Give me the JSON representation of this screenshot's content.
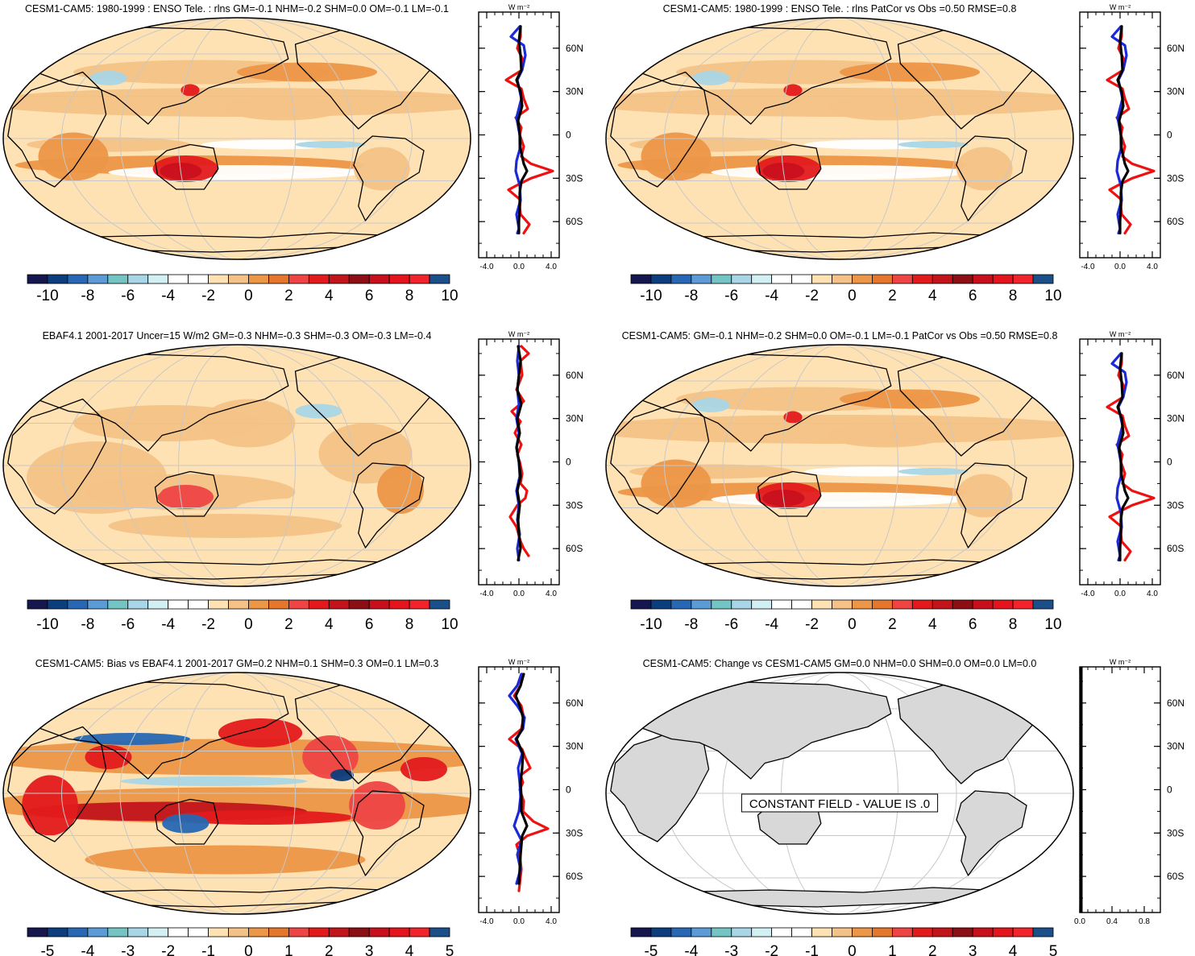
{
  "colors": {
    "scale": [
      "#17174f",
      "#0c3e7d",
      "#2767b3",
      "#5b9bd6",
      "#75c4c4",
      "#a9d6e6",
      "#d2f0f4",
      "#ffffff",
      "#ffffff",
      "#ffe2b4",
      "#f4c287",
      "#ec9648",
      "#e5772d",
      "#ee4444",
      "#e31a1c",
      "#c2151b",
      "#8b0f14",
      "#c8101c",
      "#e4141c",
      "#f0242a",
      "#1b4f8a"
    ],
    "land": "#000000",
    "series_red": "#ee1111",
    "series_blue": "#1b2ad6",
    "series_black": "#000000",
    "constant_land": "#d8d8d8"
  },
  "panels": [
    {
      "title": "CESM1-CAM5: 1980-1999 : ENSO Tele. : rlns GM=-0.1 NHM=-0.2 SHM=0.0 OM=-0.1 LM=-0.1",
      "field": "model",
      "colorbar_labels": [
        "-10",
        "-8",
        "-6",
        "-4",
        "-2",
        "0",
        "2",
        "4",
        "6",
        "8",
        "10"
      ],
      "zonal_unit": "W m⁻²",
      "zonal_y_labels": [
        "60N",
        "30N",
        "0",
        "30S",
        "60S"
      ],
      "zonal_x_labels": [
        "-4.0",
        "0.0",
        "4.0"
      ],
      "zonal_xlim": [
        -5,
        5
      ],
      "zonal_red": [
        [
          75,
          0.2
        ],
        [
          68,
          0.2
        ],
        [
          60,
          -0.2
        ],
        [
          52,
          0.5
        ],
        [
          45,
          0.4
        ],
        [
          38,
          -1.6
        ],
        [
          32,
          0.3
        ],
        [
          25,
          0.6
        ],
        [
          18,
          1.1
        ],
        [
          12,
          -0.4
        ],
        [
          5,
          0.3
        ],
        [
          0,
          0.1
        ],
        [
          -8,
          0.6
        ],
        [
          -15,
          0.3
        ],
        [
          -20,
          1.5
        ],
        [
          -25,
          4.2
        ],
        [
          -30,
          1.5
        ],
        [
          -35,
          -0.3
        ],
        [
          -38,
          -1.3
        ],
        [
          -45,
          0.2
        ],
        [
          -50,
          0.1
        ],
        [
          -55,
          0.2
        ],
        [
          -62,
          1.3
        ],
        [
          -68,
          0.6
        ]
      ],
      "zonal_blue": [
        [
          75,
          0.1
        ],
        [
          68,
          -1.0
        ],
        [
          62,
          0.6
        ],
        [
          55,
          0.8
        ],
        [
          45,
          0.4
        ],
        [
          38,
          -0.2
        ],
        [
          25,
          0.3
        ],
        [
          12,
          -0.3
        ],
        [
          0,
          0.1
        ],
        [
          -10,
          0.1
        ],
        [
          -18,
          -0.3
        ],
        [
          -25,
          -0.4
        ],
        [
          -35,
          0.1
        ],
        [
          -45,
          0.2
        ],
        [
          -55,
          -0.3
        ],
        [
          -65,
          0.0
        ],
        [
          -68,
          -0.2
        ]
      ],
      "zonal_black": [
        [
          75,
          0.2
        ],
        [
          65,
          0.0
        ],
        [
          55,
          0.2
        ],
        [
          45,
          0.3
        ],
        [
          38,
          -0.3
        ],
        [
          30,
          0.2
        ],
        [
          20,
          0.4
        ],
        [
          10,
          -0.1
        ],
        [
          0,
          0.1
        ],
        [
          -10,
          0.2
        ],
        [
          -20,
          0.6
        ],
        [
          -25,
          1.0
        ],
        [
          -32,
          0.3
        ],
        [
          -40,
          0.1
        ],
        [
          -50,
          0.1
        ],
        [
          -60,
          0.0
        ],
        [
          -68,
          0.0
        ]
      ]
    },
    {
      "title": "CESM1-CAM5: 1980-1999 : ENSO Tele. : rlns PatCor vs Obs =0.50 RMSE=0.8",
      "field": "model",
      "colorbar_labels": [
        "-10",
        "-8",
        "-6",
        "-4",
        "-2",
        "0",
        "2",
        "4",
        "6",
        "8",
        "10"
      ],
      "zonal_unit": "W m⁻²",
      "zonal_y_labels": [
        "60N",
        "30N",
        "0",
        "30S",
        "60S"
      ],
      "zonal_x_labels": [
        "-4.0",
        "0.0",
        "4.0"
      ],
      "zonal_xlim": [
        -5,
        5
      ],
      "zonal_red": [
        [
          75,
          0.2
        ],
        [
          68,
          0.2
        ],
        [
          60,
          -0.2
        ],
        [
          52,
          0.5
        ],
        [
          45,
          0.4
        ],
        [
          38,
          -1.6
        ],
        [
          32,
          0.3
        ],
        [
          25,
          0.6
        ],
        [
          18,
          1.1
        ],
        [
          12,
          -0.4
        ],
        [
          5,
          0.3
        ],
        [
          0,
          0.1
        ],
        [
          -8,
          0.6
        ],
        [
          -15,
          0.3
        ],
        [
          -20,
          1.5
        ],
        [
          -25,
          4.2
        ],
        [
          -30,
          1.5
        ],
        [
          -35,
          -0.3
        ],
        [
          -38,
          -1.3
        ],
        [
          -45,
          0.2
        ],
        [
          -50,
          0.1
        ],
        [
          -55,
          0.2
        ],
        [
          -62,
          1.3
        ],
        [
          -68,
          0.6
        ]
      ],
      "zonal_blue": [
        [
          75,
          0.1
        ],
        [
          68,
          -1.0
        ],
        [
          62,
          0.6
        ],
        [
          55,
          0.8
        ],
        [
          45,
          0.4
        ],
        [
          38,
          -0.2
        ],
        [
          25,
          0.3
        ],
        [
          12,
          -0.3
        ],
        [
          0,
          0.1
        ],
        [
          -10,
          0.1
        ],
        [
          -18,
          -0.3
        ],
        [
          -25,
          -0.4
        ],
        [
          -35,
          0.1
        ],
        [
          -45,
          0.2
        ],
        [
          -55,
          -0.3
        ],
        [
          -65,
          0.0
        ],
        [
          -68,
          -0.2
        ]
      ],
      "zonal_black": [
        [
          75,
          0.2
        ],
        [
          65,
          0.0
        ],
        [
          55,
          0.2
        ],
        [
          45,
          0.3
        ],
        [
          38,
          -0.3
        ],
        [
          30,
          0.2
        ],
        [
          20,
          0.4
        ],
        [
          10,
          -0.1
        ],
        [
          0,
          0.1
        ],
        [
          -10,
          0.2
        ],
        [
          -20,
          0.6
        ],
        [
          -25,
          1.0
        ],
        [
          -32,
          0.3
        ],
        [
          -40,
          0.1
        ],
        [
          -50,
          0.1
        ],
        [
          -60,
          0.0
        ],
        [
          -68,
          0.0
        ]
      ]
    },
    {
      "title": "EBAF4.1 2001-2017 Uncer=15 W/m2 GM=-0.3 NHM=-0.3 SHM=-0.3 OM=-0.3 LM=-0.4",
      "field": "obs",
      "colorbar_labels": [
        "-10",
        "-8",
        "-6",
        "-4",
        "-2",
        "0",
        "2",
        "4",
        "6",
        "8",
        "10"
      ],
      "zonal_unit": "W m⁻²",
      "zonal_y_labels": [
        "60N",
        "30N",
        "0",
        "30S",
        "60S"
      ],
      "zonal_x_labels": [
        "-4.0",
        "0.0",
        "4.0"
      ],
      "zonal_xlim": [
        -5,
        5
      ],
      "zonal_red": [
        [
          80,
          0.3
        ],
        [
          75,
          1.2
        ],
        [
          70,
          0.2
        ],
        [
          60,
          0.4
        ],
        [
          50,
          -0.3
        ],
        [
          42,
          0.6
        ],
        [
          35,
          -0.9
        ],
        [
          28,
          0.2
        ],
        [
          20,
          -0.5
        ],
        [
          12,
          0.3
        ],
        [
          5,
          -0.2
        ],
        [
          0,
          0.1
        ],
        [
          -8,
          0.4
        ],
        [
          -15,
          0.2
        ],
        [
          -20,
          1.0
        ],
        [
          -25,
          0.8
        ],
        [
          -30,
          -0.2
        ],
        [
          -38,
          -1.1
        ],
        [
          -45,
          -0.3
        ],
        [
          -55,
          0.2
        ],
        [
          -60,
          0.6
        ],
        [
          -65,
          1.2
        ]
      ],
      "zonal_blue": [
        [
          80,
          0.0
        ],
        [
          70,
          -0.2
        ],
        [
          60,
          0.0
        ],
        [
          50,
          -0.2
        ],
        [
          40,
          0.0
        ],
        [
          30,
          -0.3
        ],
        [
          20,
          0.0
        ],
        [
          10,
          -0.3
        ],
        [
          0,
          0.0
        ],
        [
          -10,
          0.1
        ],
        [
          -20,
          -0.3
        ],
        [
          -30,
          0.0
        ],
        [
          -40,
          -0.2
        ],
        [
          -50,
          0.1
        ],
        [
          -60,
          -0.2
        ],
        [
          -68,
          0.0
        ]
      ],
      "zonal_black": [
        [
          80,
          -0.1
        ],
        [
          70,
          0.2
        ],
        [
          60,
          0.0
        ],
        [
          50,
          -0.2
        ],
        [
          40,
          0.3
        ],
        [
          30,
          -0.2
        ],
        [
          20,
          0.1
        ],
        [
          10,
          -0.3
        ],
        [
          0,
          0.0
        ],
        [
          -10,
          0.2
        ],
        [
          -20,
          -0.2
        ],
        [
          -30,
          0.1
        ],
        [
          -40,
          -0.1
        ],
        [
          -50,
          0.0
        ],
        [
          -60,
          0.2
        ],
        [
          -68,
          -0.1
        ]
      ]
    },
    {
      "title": "CESM1-CAM5: GM=-0.1 NHM=-0.2 SHM=0.0 OM=-0.1 LM=-0.1 PatCor vs Obs =0.50 RMSE=0.8",
      "field": "model",
      "colorbar_labels": [
        "-10",
        "-8",
        "-6",
        "-4",
        "-2",
        "0",
        "2",
        "4",
        "6",
        "8",
        "10"
      ],
      "zonal_unit": "W m⁻²",
      "zonal_y_labels": [
        "60N",
        "30N",
        "0",
        "30S",
        "60S"
      ],
      "zonal_x_labels": [
        "-4.0",
        "0.0",
        "4.0"
      ],
      "zonal_xlim": [
        -5,
        5
      ],
      "zonal_red": [
        [
          75,
          0.2
        ],
        [
          68,
          0.2
        ],
        [
          60,
          -0.2
        ],
        [
          52,
          0.5
        ],
        [
          45,
          0.4
        ],
        [
          38,
          -1.6
        ],
        [
          32,
          0.3
        ],
        [
          25,
          0.6
        ],
        [
          18,
          1.1
        ],
        [
          12,
          -0.4
        ],
        [
          5,
          0.3
        ],
        [
          0,
          0.1
        ],
        [
          -8,
          0.6
        ],
        [
          -15,
          0.3
        ],
        [
          -20,
          1.5
        ],
        [
          -25,
          4.2
        ],
        [
          -30,
          1.5
        ],
        [
          -35,
          -0.3
        ],
        [
          -38,
          -1.3
        ],
        [
          -45,
          0.2
        ],
        [
          -50,
          0.1
        ],
        [
          -55,
          0.2
        ],
        [
          -62,
          1.3
        ],
        [
          -68,
          0.6
        ]
      ],
      "zonal_blue": [
        [
          75,
          0.1
        ],
        [
          68,
          -1.0
        ],
        [
          62,
          0.6
        ],
        [
          55,
          0.8
        ],
        [
          45,
          0.4
        ],
        [
          38,
          -0.2
        ],
        [
          25,
          0.3
        ],
        [
          12,
          -0.3
        ],
        [
          0,
          0.1
        ],
        [
          -10,
          0.1
        ],
        [
          -18,
          -0.3
        ],
        [
          -25,
          -0.4
        ],
        [
          -35,
          0.1
        ],
        [
          -45,
          0.2
        ],
        [
          -55,
          -0.3
        ],
        [
          -65,
          0.0
        ],
        [
          -68,
          -0.2
        ]
      ],
      "zonal_black": [
        [
          75,
          0.2
        ],
        [
          65,
          0.0
        ],
        [
          55,
          0.2
        ],
        [
          45,
          0.3
        ],
        [
          38,
          -0.3
        ],
        [
          30,
          0.2
        ],
        [
          20,
          0.4
        ],
        [
          10,
          -0.1
        ],
        [
          0,
          0.1
        ],
        [
          -10,
          0.2
        ],
        [
          -20,
          0.6
        ],
        [
          -25,
          1.0
        ],
        [
          -32,
          0.3
        ],
        [
          -40,
          0.1
        ],
        [
          -50,
          0.1
        ],
        [
          -60,
          0.0
        ],
        [
          -68,
          0.0
        ]
      ]
    },
    {
      "title": "CESM1-CAM5: Bias vs EBAF4.1 2001-2017 GM=0.2 NHM=0.1 SHM=0.3 OM=0.1 LM=0.3",
      "field": "bias",
      "colorbar_labels": [
        "-5",
        "-4",
        "-3",
        "-2",
        "-1",
        "0",
        "1",
        "2",
        "3",
        "4",
        "5"
      ],
      "zonal_unit": "W m⁻²",
      "zonal_y_labels": [
        "60N",
        "30N",
        "0",
        "30S",
        "60S"
      ],
      "zonal_x_labels": [
        "-4.0",
        "0.0",
        "4.0"
      ],
      "zonal_xlim": [
        -5,
        5
      ],
      "zonal_red": [
        [
          80,
          0.4
        ],
        [
          72,
          0.2
        ],
        [
          65,
          -0.6
        ],
        [
          58,
          0.3
        ],
        [
          50,
          0.6
        ],
        [
          42,
          0.3
        ],
        [
          35,
          -1.2
        ],
        [
          28,
          0.4
        ],
        [
          22,
          0.8
        ],
        [
          15,
          1.4
        ],
        [
          10,
          0.2
        ],
        [
          5,
          0.5
        ],
        [
          0,
          0.1
        ],
        [
          -8,
          0.6
        ],
        [
          -15,
          0.5
        ],
        [
          -22,
          1.8
        ],
        [
          -27,
          3.6
        ],
        [
          -32,
          1.0
        ],
        [
          -38,
          -0.3
        ],
        [
          -45,
          0.1
        ],
        [
          -55,
          0.3
        ],
        [
          -65,
          0.1
        ],
        [
          -70,
          0.0
        ]
      ],
      "zonal_blue": [
        [
          80,
          0.3
        ],
        [
          72,
          -0.2
        ],
        [
          65,
          -1.2
        ],
        [
          58,
          -0.2
        ],
        [
          50,
          0.7
        ],
        [
          42,
          0.5
        ],
        [
          35,
          -0.4
        ],
        [
          25,
          0.4
        ],
        [
          15,
          -0.1
        ],
        [
          5,
          0.1
        ],
        [
          -5,
          0.2
        ],
        [
          -15,
          0.0
        ],
        [
          -25,
          -0.6
        ],
        [
          -35,
          0.3
        ],
        [
          -45,
          -0.2
        ],
        [
          -55,
          0.2
        ],
        [
          -65,
          -0.3
        ]
      ],
      "zonal_black": [
        [
          80,
          0.6
        ],
        [
          72,
          0.2
        ],
        [
          65,
          -0.4
        ],
        [
          58,
          0.1
        ],
        [
          50,
          0.5
        ],
        [
          42,
          0.4
        ],
        [
          35,
          -0.3
        ],
        [
          25,
          0.5
        ],
        [
          15,
          0.4
        ],
        [
          5,
          0.2
        ],
        [
          -5,
          0.3
        ],
        [
          -15,
          0.3
        ],
        [
          -25,
          1.0
        ],
        [
          -32,
          0.4
        ],
        [
          -45,
          0.2
        ],
        [
          -55,
          0.1
        ],
        [
          -65,
          0.0
        ]
      ]
    },
    {
      "title": "CESM1-CAM5: Change vs CESM1-CAM5 GM=0.0 NHM=0.0 SHM=0.0 OM=0.0 LM=0.0",
      "field": "constant",
      "colorbar_labels": [
        "-5",
        "-4",
        "-3",
        "-2",
        "-1",
        "0",
        "1",
        "2",
        "3",
        "4",
        "5"
      ],
      "zonal_unit": "W m⁻²",
      "zonal_y_labels": [
        "60N",
        "30N",
        "0",
        "30S",
        "60S"
      ],
      "zonal_x_labels": [
        "0.0",
        "0.4",
        "0.8"
      ],
      "zonal_xlim": [
        0,
        1
      ],
      "constant_label": "CONSTANT FIELD - VALUE IS .0"
    }
  ]
}
